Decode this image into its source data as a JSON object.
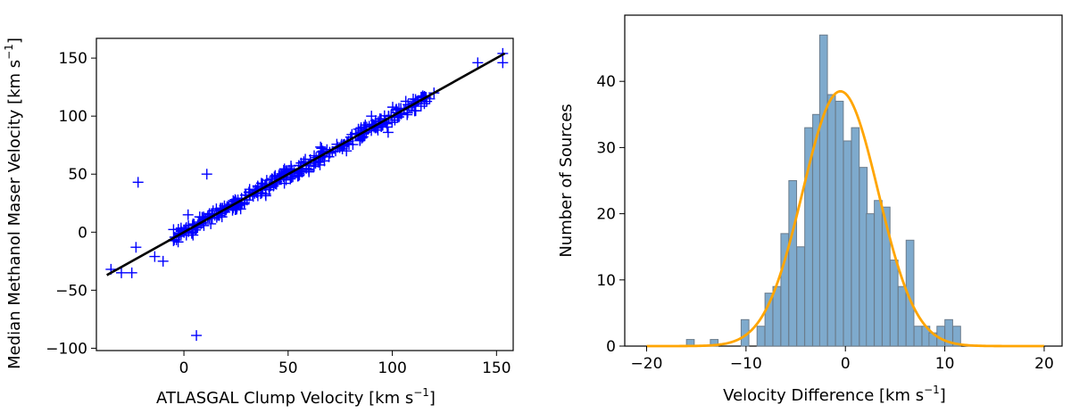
{
  "chart_data": [
    {
      "type": "scatter",
      "xlabel": "ATLASGAL Clump Velocity [km s",
      "ylabel": "Median Methanol Maser Velocity [km s",
      "unit_sup": "−1",
      "unit_close": "]",
      "xlim": [
        -42,
        158
      ],
      "ylim": [
        -102,
        167
      ],
      "xticks": [
        0,
        50,
        100,
        150
      ],
      "yticks": [
        -100,
        -50,
        0,
        50,
        100,
        150
      ],
      "xtick_labels": [
        "0",
        "50",
        "100",
        "150"
      ],
      "ytick_labels": [
        "−100",
        "−50",
        "0",
        "50",
        "100",
        "150"
      ],
      "marker": "+",
      "marker_color": "#0000ff",
      "fit_line": {
        "x": [
          -37,
          154
        ],
        "y": [
          -37,
          154
        ],
        "color": "#000000"
      },
      "outliers": [
        {
          "x": -35,
          "y": -32
        },
        {
          "x": -30,
          "y": -35
        },
        {
          "x": -25,
          "y": -35
        },
        {
          "x": -23,
          "y": -13
        },
        {
          "x": -22,
          "y": 43
        },
        {
          "x": -14,
          "y": -21
        },
        {
          "x": 11,
          "y": 50
        },
        {
          "x": 6,
          "y": -89
        },
        {
          "x": 2,
          "y": 15
        },
        {
          "x": 141,
          "y": 146
        },
        {
          "x": 153,
          "y": 146
        },
        {
          "x": 153,
          "y": 154
        },
        {
          "x": 0,
          "y": 2
        },
        {
          "x": -10,
          "y": -25
        },
        {
          "x": 60,
          "y": 52
        },
        {
          "x": 78,
          "y": 70
        },
        {
          "x": 98,
          "y": 86
        },
        {
          "x": 90,
          "y": 100
        },
        {
          "x": 85,
          "y": 90
        },
        {
          "x": 120,
          "y": 120
        }
      ],
      "cloud": {
        "x_range": [
          -5,
          118
        ],
        "spread": 4.5,
        "count": 330,
        "seed": 7
      }
    },
    {
      "type": "bar",
      "xlabel": "Velocity Difference [km s",
      "ylabel": "Number of Sources",
      "unit_sup": "−1",
      "unit_close": "]",
      "xlim": [
        -22.2,
        21.8
      ],
      "ylim": [
        0,
        50
      ],
      "xticks": [
        -20,
        -10,
        0,
        10,
        20
      ],
      "yticks": [
        0,
        10,
        20,
        30,
        40
      ],
      "xtick_labels": [
        "−20",
        "−10",
        "0",
        "10",
        "20"
      ],
      "ytick_labels": [
        "0",
        "10",
        "20",
        "30",
        "40"
      ],
      "bin_width": 0.78,
      "bins": [
        {
          "x": -15.6,
          "value": 1
        },
        {
          "x": -13.2,
          "value": 1
        },
        {
          "x": -10.1,
          "value": 4
        },
        {
          "x": -8.5,
          "value": 3
        },
        {
          "x": -7.7,
          "value": 8
        },
        {
          "x": -6.9,
          "value": 9
        },
        {
          "x": -6.1,
          "value": 17
        },
        {
          "x": -5.3,
          "value": 25
        },
        {
          "x": -4.5,
          "value": 15
        },
        {
          "x": -3.7,
          "value": 33
        },
        {
          "x": -2.9,
          "value": 35
        },
        {
          "x": -2.2,
          "value": 47
        },
        {
          "x": -1.4,
          "value": 38
        },
        {
          "x": -0.6,
          "value": 37
        },
        {
          "x": 0.2,
          "value": 31
        },
        {
          "x": 1.0,
          "value": 33
        },
        {
          "x": 1.8,
          "value": 27
        },
        {
          "x": 2.5,
          "value": 20
        },
        {
          "x": 3.3,
          "value": 22
        },
        {
          "x": 4.1,
          "value": 21
        },
        {
          "x": 4.9,
          "value": 13
        },
        {
          "x": 5.7,
          "value": 9
        },
        {
          "x": 6.5,
          "value": 16
        },
        {
          "x": 7.3,
          "value": 3
        },
        {
          "x": 8.1,
          "value": 3
        },
        {
          "x": 8.8,
          "value": 2
        },
        {
          "x": 9.6,
          "value": 3
        },
        {
          "x": 10.4,
          "value": 4
        },
        {
          "x": 11.2,
          "value": 3
        }
      ],
      "bar_color": "#7eaacd",
      "bar_edge": "#6b7c8c",
      "gaussian": {
        "amplitude": 38.5,
        "mean": -0.5,
        "sigma": 3.8,
        "x_range": [
          -20,
          20
        ],
        "color": "#ffa500"
      }
    }
  ]
}
